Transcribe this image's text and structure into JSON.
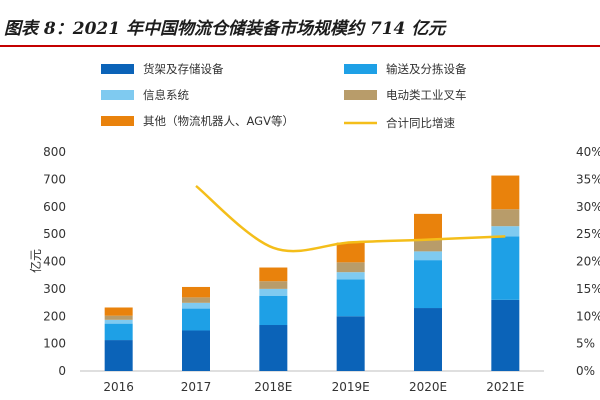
{
  "header": {
    "title": "图表 8：2021 年中国物流仓储装备市场规模约 714 亿元"
  },
  "chart_data": {
    "type": "bar",
    "stacked": true,
    "title": "图表 8：2021 年中国物流仓储装备市场规模约 714 亿元",
    "categories": [
      "2016",
      "2017",
      "2018E",
      "2019E",
      "2020E",
      "2021E"
    ],
    "ylabel": "亿元",
    "ylim": [
      0,
      800
    ],
    "yticks": [
      "0",
      "100",
      "200",
      "300",
      "400",
      "500",
      "600",
      "700",
      "800"
    ],
    "y2lim": [
      0,
      40
    ],
    "y2ticks": [
      "0%",
      "5%",
      "10%",
      "15%",
      "20%",
      "25%",
      "30%",
      "35%",
      "40%"
    ],
    "series": [
      {
        "name": "货架及存储设备",
        "color": "#0b63b8",
        "values": [
          113,
          148,
          168,
          200,
          230,
          260
        ]
      },
      {
        "name": "输送及分拣设备",
        "color": "#1ea0e6",
        "values": [
          60,
          80,
          107,
          135,
          175,
          232
        ]
      },
      {
        "name": "信息系统",
        "color": "#7fcaf0",
        "values": [
          14,
          21,
          25,
          26,
          32,
          37
        ]
      },
      {
        "name": "电动类工业叉车",
        "color": "#b89c6a",
        "values": [
          15,
          20,
          28,
          36,
          42,
          62
        ]
      },
      {
        "name": "其他（物流机器人、AGV等）",
        "color": "#e9820c",
        "values": [
          30,
          38,
          50,
          72,
          95,
          123
        ]
      }
    ],
    "line": {
      "name": "合计同比增速",
      "color": "#f4be1a",
      "axis": "right",
      "values": [
        null,
        33.8,
        22.5,
        23.5,
        24.0,
        24.6
      ]
    },
    "legend_position": "top"
  }
}
